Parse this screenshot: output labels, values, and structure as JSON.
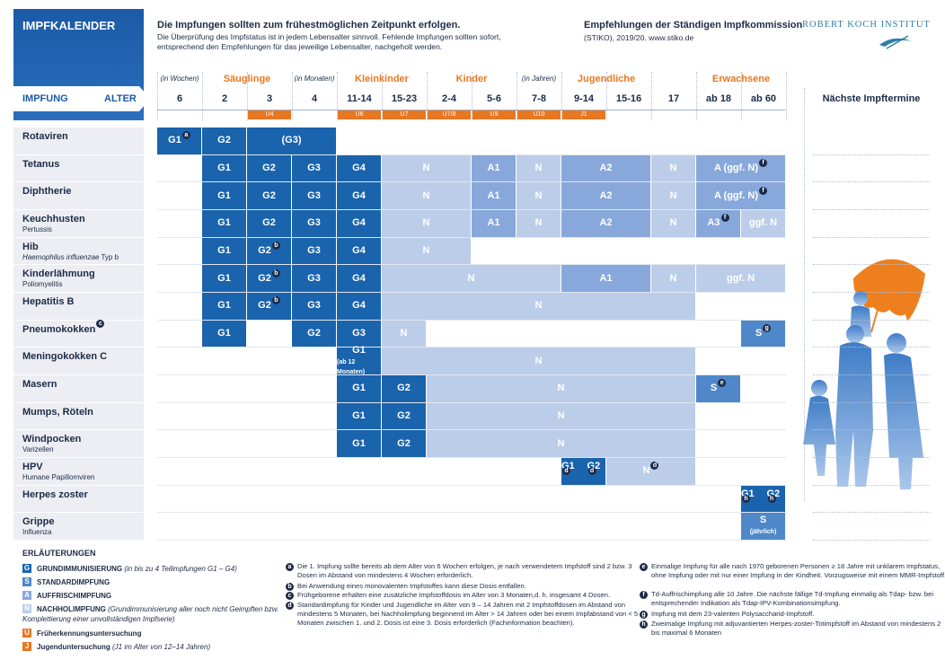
{
  "header": {
    "title": "IMPFKALENDER",
    "headline": "Die Impfungen sollten zum frühestmöglichen Zeitpunkt erfolgen.",
    "text": "Die Überprüfung des Impfstatus ist in jedem Lebensalter sinnvoll. Fehlende Impfungen sollten sofort, entsprechend den Empfehlungen für das jeweilige Lebensalter, nachgeholt werden.",
    "stiko_title": "Empfehlungen der Ständigen Impfkommission",
    "stiko_text": "(STIKO), 2019/20. www.stiko.de",
    "institute": "ROBERT KOCH INSTITUT"
  },
  "table": {
    "header_label": "IMPFUNG",
    "age_label": "ALTER",
    "next_dates_label": "Nächste Impftermine",
    "age_units": [
      {
        "label": "(in Wochen)",
        "col": 0
      },
      {
        "label": "(in Monaten)",
        "col": 3
      },
      {
        "label": "(in Jahren)",
        "col": 8
      }
    ],
    "age_groups": [
      {
        "label": "Säuglinge",
        "col": 1,
        "span": 2
      },
      {
        "label": "Kleinkinder",
        "col": 4,
        "span": 2
      },
      {
        "label": "Kinder",
        "col": 6,
        "span": 2
      },
      {
        "label": "Jugendliche",
        "col": 9,
        "span": 2
      },
      {
        "label": "Erwachsene",
        "col": 12,
        "span": 2
      }
    ],
    "columns": [
      "6",
      "2",
      "3",
      "4",
      "11-14",
      "15-23",
      "2-4",
      "5-6",
      "7-8",
      "9-14",
      "15-16",
      "17",
      "ab 18",
      "ab 60"
    ],
    "exams": [
      {
        "label": "U4",
        "col": 2
      },
      {
        "label": "U6",
        "col": 4
      },
      {
        "label": "U7",
        "col": 5
      },
      {
        "label": "U7/8",
        "col": 6
      },
      {
        "label": "U9",
        "col": 7
      },
      {
        "label": "U10",
        "col": 8
      },
      {
        "label": "J1",
        "col": 9
      }
    ],
    "rows": [
      {
        "name": "Rotaviren",
        "cells": [
          {
            "col": 0,
            "span": 1,
            "kind": "G",
            "text": "G1",
            "sup": "a"
          },
          {
            "col": 1,
            "span": 1,
            "kind": "G",
            "text": "G2"
          },
          {
            "col": 2,
            "span": 2,
            "kind": "G",
            "text": "(G3)"
          }
        ]
      },
      {
        "name": "Tetanus",
        "cells": [
          {
            "col": 1,
            "span": 1,
            "kind": "G",
            "text": "G1"
          },
          {
            "col": 2,
            "span": 1,
            "kind": "G",
            "text": "G2"
          },
          {
            "col": 3,
            "span": 1,
            "kind": "G",
            "text": "G3"
          },
          {
            "col": 4,
            "span": 1,
            "kind": "G",
            "text": "G4"
          },
          {
            "col": 5,
            "span": 2,
            "kind": "N",
            "text": "N"
          },
          {
            "col": 7,
            "span": 1,
            "kind": "A",
            "text": "A1"
          },
          {
            "col": 8,
            "span": 1,
            "kind": "N",
            "text": "N"
          },
          {
            "col": 9,
            "span": 2,
            "kind": "A",
            "text": "A2"
          },
          {
            "col": 11,
            "span": 1,
            "kind": "N",
            "text": "N"
          },
          {
            "col": 12,
            "span": 2,
            "kind": "A",
            "text": "A (ggf. N)",
            "sup": "f"
          }
        ]
      },
      {
        "name": "Diphtherie",
        "cells": [
          {
            "col": 1,
            "span": 1,
            "kind": "G",
            "text": "G1"
          },
          {
            "col": 2,
            "span": 1,
            "kind": "G",
            "text": "G2"
          },
          {
            "col": 3,
            "span": 1,
            "kind": "G",
            "text": "G3"
          },
          {
            "col": 4,
            "span": 1,
            "kind": "G",
            "text": "G4"
          },
          {
            "col": 5,
            "span": 2,
            "kind": "N",
            "text": "N"
          },
          {
            "col": 7,
            "span": 1,
            "kind": "A",
            "text": "A1"
          },
          {
            "col": 8,
            "span": 1,
            "kind": "N",
            "text": "N"
          },
          {
            "col": 9,
            "span": 2,
            "kind": "A",
            "text": "A2"
          },
          {
            "col": 11,
            "span": 1,
            "kind": "N",
            "text": "N"
          },
          {
            "col": 12,
            "span": 2,
            "kind": "A",
            "text": "A (ggf. N)",
            "sup": "f"
          }
        ]
      },
      {
        "name": "Keuchhusten",
        "subname": "Pertussis",
        "cells": [
          {
            "col": 1,
            "span": 1,
            "kind": "G",
            "text": "G1"
          },
          {
            "col": 2,
            "span": 1,
            "kind": "G",
            "text": "G2"
          },
          {
            "col": 3,
            "span": 1,
            "kind": "G",
            "text": "G3"
          },
          {
            "col": 4,
            "span": 1,
            "kind": "G",
            "text": "G4"
          },
          {
            "col": 5,
            "span": 2,
            "kind": "N",
            "text": "N"
          },
          {
            "col": 7,
            "span": 1,
            "kind": "A",
            "text": "A1"
          },
          {
            "col": 8,
            "span": 1,
            "kind": "N",
            "text": "N"
          },
          {
            "col": 9,
            "span": 2,
            "kind": "A",
            "text": "A2"
          },
          {
            "col": 11,
            "span": 1,
            "kind": "N",
            "text": "N"
          },
          {
            "col": 12,
            "span": 1,
            "kind": "A",
            "text": "A3",
            "sup": "f"
          },
          {
            "col": 13,
            "span": 1,
            "kind": "N",
            "text": "ggf. N"
          }
        ]
      },
      {
        "name": "Hib",
        "subname": "Haemophilus influenzae",
        "subname_extra": "Typ b",
        "cells": [
          {
            "col": 1,
            "span": 1,
            "kind": "G",
            "text": "G1"
          },
          {
            "col": 2,
            "span": 1,
            "kind": "G",
            "text": "G2",
            "sup": "b"
          },
          {
            "col": 3,
            "span": 1,
            "kind": "G",
            "text": "G3"
          },
          {
            "col": 4,
            "span": 1,
            "kind": "G",
            "text": "G4"
          },
          {
            "col": 5,
            "span": 2,
            "kind": "N",
            "text": "N"
          }
        ]
      },
      {
        "name": "Kinderlähmung",
        "subname": "Poliomyelitis",
        "cells": [
          {
            "col": 1,
            "span": 1,
            "kind": "G",
            "text": "G1"
          },
          {
            "col": 2,
            "span": 1,
            "kind": "G",
            "text": "G2",
            "sup": "b"
          },
          {
            "col": 3,
            "span": 1,
            "kind": "G",
            "text": "G3"
          },
          {
            "col": 4,
            "span": 1,
            "kind": "G",
            "text": "G4"
          },
          {
            "col": 5,
            "span": 4,
            "kind": "N",
            "text": "N"
          },
          {
            "col": 9,
            "span": 2,
            "kind": "A",
            "text": "A1"
          },
          {
            "col": 11,
            "span": 1,
            "kind": "N",
            "text": "N"
          },
          {
            "col": 12,
            "span": 2,
            "kind": "N",
            "text": "ggf. N"
          }
        ]
      },
      {
        "name": "Hepatitis B",
        "cells": [
          {
            "col": 1,
            "span": 1,
            "kind": "G",
            "text": "G1"
          },
          {
            "col": 2,
            "span": 1,
            "kind": "G",
            "text": "G2",
            "sup": "b"
          },
          {
            "col": 3,
            "span": 1,
            "kind": "G",
            "text": "G3"
          },
          {
            "col": 4,
            "span": 1,
            "kind": "G",
            "text": "G4"
          },
          {
            "col": 5,
            "span": 7,
            "kind": "N",
            "text": "N"
          }
        ]
      },
      {
        "name": "Pneumokokken",
        "sup": "c",
        "cells": [
          {
            "col": 1,
            "span": 1,
            "kind": "G",
            "text": "G1"
          },
          {
            "col": 3,
            "span": 1,
            "kind": "G",
            "text": "G2"
          },
          {
            "col": 4,
            "span": 1,
            "kind": "G",
            "text": "G3"
          },
          {
            "col": 5,
            "span": 1,
            "kind": "N",
            "text": "N"
          },
          {
            "col": 13,
            "span": 1,
            "kind": "S",
            "text": "S",
            "sup": "g"
          }
        ]
      },
      {
        "name": "Meningokokken C",
        "cells": [
          {
            "col": 4,
            "span": 1,
            "kind": "G",
            "text": "G1",
            "sub": "(ab 12 Monaten)"
          },
          {
            "col": 5,
            "span": 7,
            "kind": "N",
            "text": "N"
          }
        ]
      },
      {
        "name": "Masern",
        "cells": [
          {
            "col": 4,
            "span": 1,
            "kind": "G",
            "text": "G1"
          },
          {
            "col": 5,
            "span": 1,
            "kind": "G",
            "text": "G2"
          },
          {
            "col": 6,
            "span": 6,
            "kind": "N",
            "text": "N"
          },
          {
            "col": 12,
            "span": 1,
            "kind": "S",
            "text": "S",
            "sup": "e"
          }
        ]
      },
      {
        "name": "Mumps, Röteln",
        "cells": [
          {
            "col": 4,
            "span": 1,
            "kind": "G",
            "text": "G1"
          },
          {
            "col": 5,
            "span": 1,
            "kind": "G",
            "text": "G2"
          },
          {
            "col": 6,
            "span": 6,
            "kind": "N",
            "text": "N"
          }
        ]
      },
      {
        "name": "Windpocken",
        "subname": "Varizellen",
        "cells": [
          {
            "col": 4,
            "span": 1,
            "kind": "G",
            "text": "G1"
          },
          {
            "col": 5,
            "span": 1,
            "kind": "G",
            "text": "G2"
          },
          {
            "col": 6,
            "span": 6,
            "kind": "N",
            "text": "N"
          }
        ]
      },
      {
        "name": "HPV",
        "subname": "Humane Papillomviren",
        "cells": [
          {
            "col": 9,
            "span": 1,
            "kind": "G",
            "texts": [
              "G1",
              "G2"
            ],
            "sups": [
              "d",
              "d"
            ]
          },
          {
            "col": 10,
            "span": 2,
            "kind": "N",
            "text": "N",
            "sup": "d"
          }
        ]
      },
      {
        "name": "Herpes zoster",
        "cells": [
          {
            "col": 13,
            "span": 1,
            "kind": "G",
            "texts": [
              "G1",
              "G2"
            ],
            "sups": [
              "h",
              "h"
            ]
          }
        ]
      },
      {
        "name": "Grippe",
        "subname": "Influenza",
        "cells": [
          {
            "col": 13,
            "span": 1,
            "kind": "S",
            "text": "S",
            "sub": "(jährlich)"
          }
        ]
      }
    ]
  },
  "legend": {
    "title": "ERLÄUTERUNGEN",
    "items": [
      {
        "key": "G",
        "color": "#1a63ad",
        "label": "GRUNDIMMUNISIERUNG",
        "note": "(in bis zu 4 Teilimpfungen G1 – G4)"
      },
      {
        "key": "S",
        "color": "#4f87c9",
        "label": "STANDARDIMPFUNG"
      },
      {
        "key": "A",
        "color": "#88a8db",
        "label": "AUFFRISCHIMPFUNG"
      },
      {
        "key": "N",
        "color": "#bccdea",
        "label": "NACHHOLIMPFUNG",
        "note": "(Grundimmunisierung aller noch nicht Geimpften bzw. Komplettierung einer unvollständigen Impfserie)"
      },
      {
        "key": "U",
        "color": "#e87722",
        "label": "Früherkennungsuntersuchung"
      },
      {
        "key": "J",
        "color": "#e87722",
        "label": "Jugenduntersuchung",
        "note": "(J1 im Alter von 12–14 Jahren)"
      }
    ]
  },
  "footnotes": [
    {
      "key": "a",
      "text": "Die 1. Impfung sollte bereits ab dem Alter von 6 Wochen erfolgen, je nach verwendetem Impfstoff sind 2 bzw. 3 Dosen im Abstand von mindestens 4 Wochen erforderlich."
    },
    {
      "key": "b",
      "text": "Bei Anwendung eines monovalenten Impfstoffes kann diese Dosis entfallen."
    },
    {
      "key": "c",
      "text": "Frühgeborene erhalten eine zusätzliche Impfstoffdosis im Alter von 3 Monaten,d. h. insgesamt 4 Dosen."
    },
    {
      "key": "d",
      "text": "Standardimpfung für Kinder und Jugendliche im Alter von 9 – 14 Jahren mit 2 Impfstoffdosen im Abstand von mindestens 5 Monaten, bei Nachholimpfung beginnend im Alter > 14 Jahren oder bei einem Impfabstand von < 5 Monaten zwischen 1. und 2. Dosis ist eine 3. Dosis erforderlich (Fachinformation beachten)."
    },
    {
      "key": "e",
      "text": "Einmalige Impfung für alle nach 1970 geborenen Personen ≥ 18 Jahre mit unklarem Impfstatus, ohne Impfung oder mit nur einer Impfung in der Kindheit. Vorzugsweise mit einem MMR-Impfstoff."
    },
    {
      "key": "f",
      "text": "Td-Auffrischimpfung alle 10 Jahre. Die nächste fällige Td-Impfung einmalig als Tdap- bzw. bei entsprechender Indikation als Tdap-IPV-Kombinationsimpfung."
    },
    {
      "key": "g",
      "text": "Impfung mit dem 23-valenten Polysaccharid-Impfstoff."
    },
    {
      "key": "h",
      "text": "Zweimalige Impfung mit adjuvantierten Herpes-zoster-Totimpfstoff im Abstand von mindestens 2 bis maximal 6 Monaten"
    }
  ]
}
